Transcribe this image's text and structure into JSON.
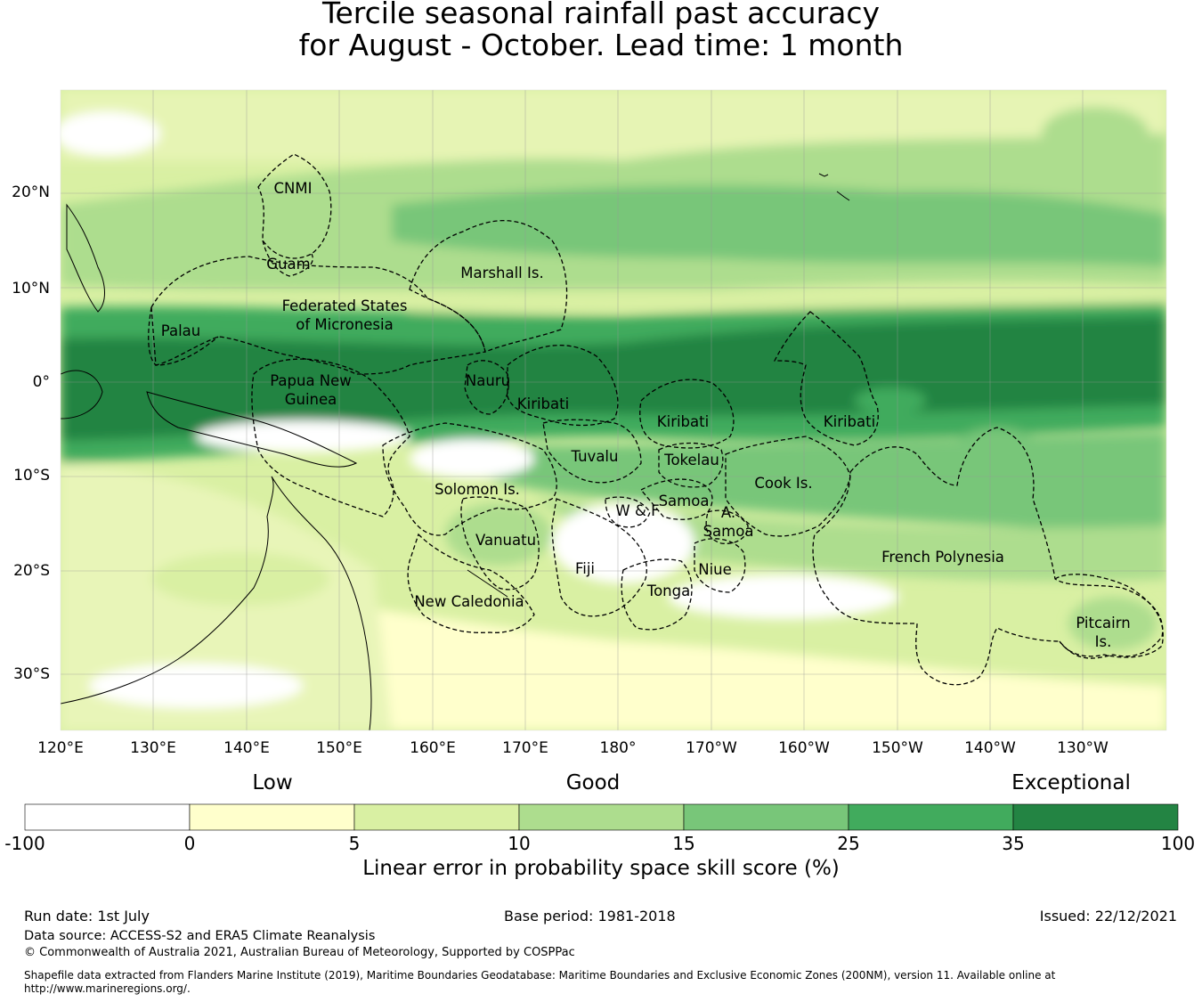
{
  "title_line1": "Tercile seasonal rainfall past accuracy",
  "title_line2": "for August - October. Lead time: 1 month",
  "map": {
    "lat_labels": [
      "20°N",
      "10°N",
      "0°",
      "10°S",
      "20°S",
      "30°S"
    ],
    "lon_labels": [
      "120°E",
      "130°E",
      "140°E",
      "150°E",
      "160°E",
      "170°E",
      "180°",
      "170°W",
      "160°W",
      "150°W",
      "140°W",
      "130°W"
    ],
    "regions": [
      "CNMI",
      "Guam",
      "Marshall Is.",
      "Federated States",
      "of Micronesia",
      "Palau",
      "Papua New",
      "Guinea",
      "Nauru",
      "Kiribati",
      "Kiribati",
      "Kiribati",
      "Tuvalu",
      "Tokelau",
      "Cook Is.",
      "Solomon Is.",
      "Samoa",
      "W & F",
      "A.",
      "Samoa",
      "Vanuatu",
      "Fiji",
      "Niue",
      "Tonga",
      "French Polynesia",
      "New Caledonia",
      "Pitcairn",
      "Is."
    ]
  },
  "legend": {
    "categories": [
      "Low",
      "Good",
      "Exceptional"
    ],
    "ticks": [
      "-100",
      "0",
      "5",
      "10",
      "15",
      "25",
      "35",
      "100"
    ],
    "colors": [
      "#ffffff",
      "#ffffcc",
      "#d9f0a3",
      "#addd8e",
      "#78c679",
      "#41ab5d",
      "#238443"
    ],
    "label": "Linear error in probability space skill score (%)"
  },
  "footer": {
    "run_date": "Run date: 1st July",
    "base_period": "Base period: 1981-2018",
    "issued": "Issued: 22/12/2021",
    "data_source": "Data source: ACCESS-S2 and ERA5 Climate Reanalysis",
    "copyright": "© Commonwealth of Australia 2021, Australian Bureau of Meteorology, Supported by COSPPac",
    "shapefile_line1": "Shapefile data extracted from Flanders Marine Institute (2019), Maritime Boundaries Geodatabase: Maritime Boundaries and Exclusive Economic Zones (200NM), version 11. Available online at",
    "shapefile_line2": "http://www.marineregions.org/."
  }
}
